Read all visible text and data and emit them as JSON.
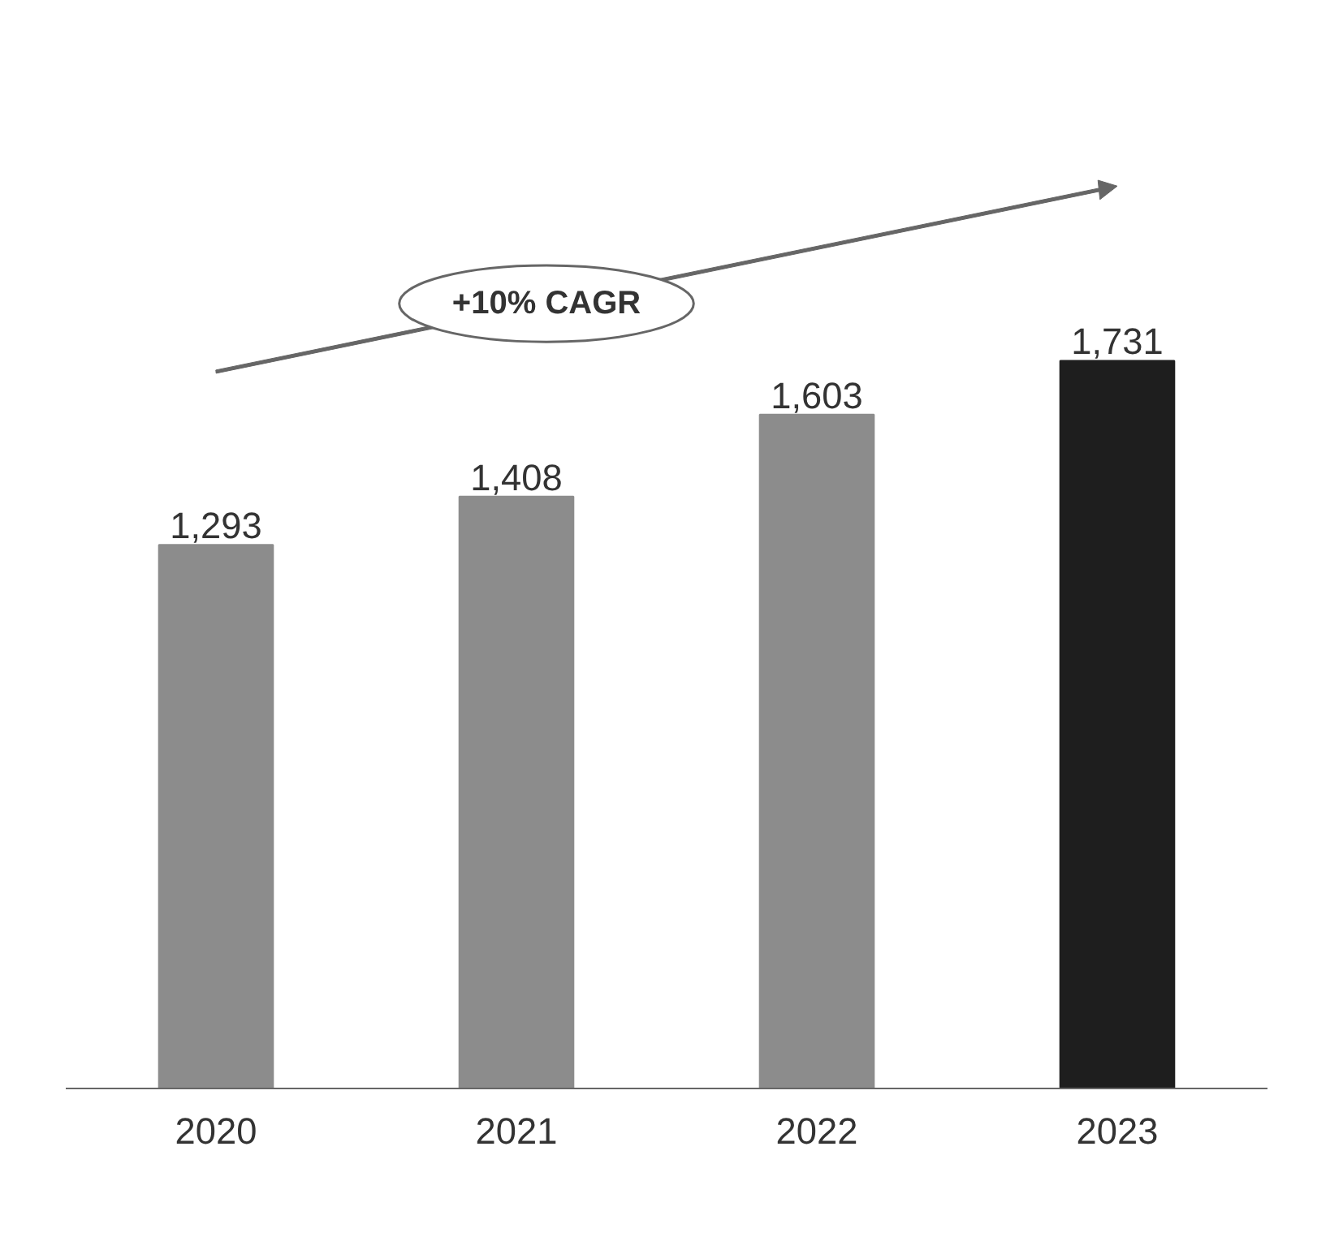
{
  "chart_data": {
    "type": "bar",
    "categories": [
      "2020",
      "2021",
      "2022",
      "2023"
    ],
    "values": [
      1293,
      1408,
      1603,
      1731
    ],
    "colors": [
      "#8c8c8c",
      "#8c8c8c",
      "#8c8c8c",
      "#1e1e1e"
    ],
    "value_labels": [
      "1,293",
      "1,408",
      "1,603",
      "1,731"
    ],
    "grid": false,
    "annotations": [
      "+10% CAGR"
    ]
  }
}
